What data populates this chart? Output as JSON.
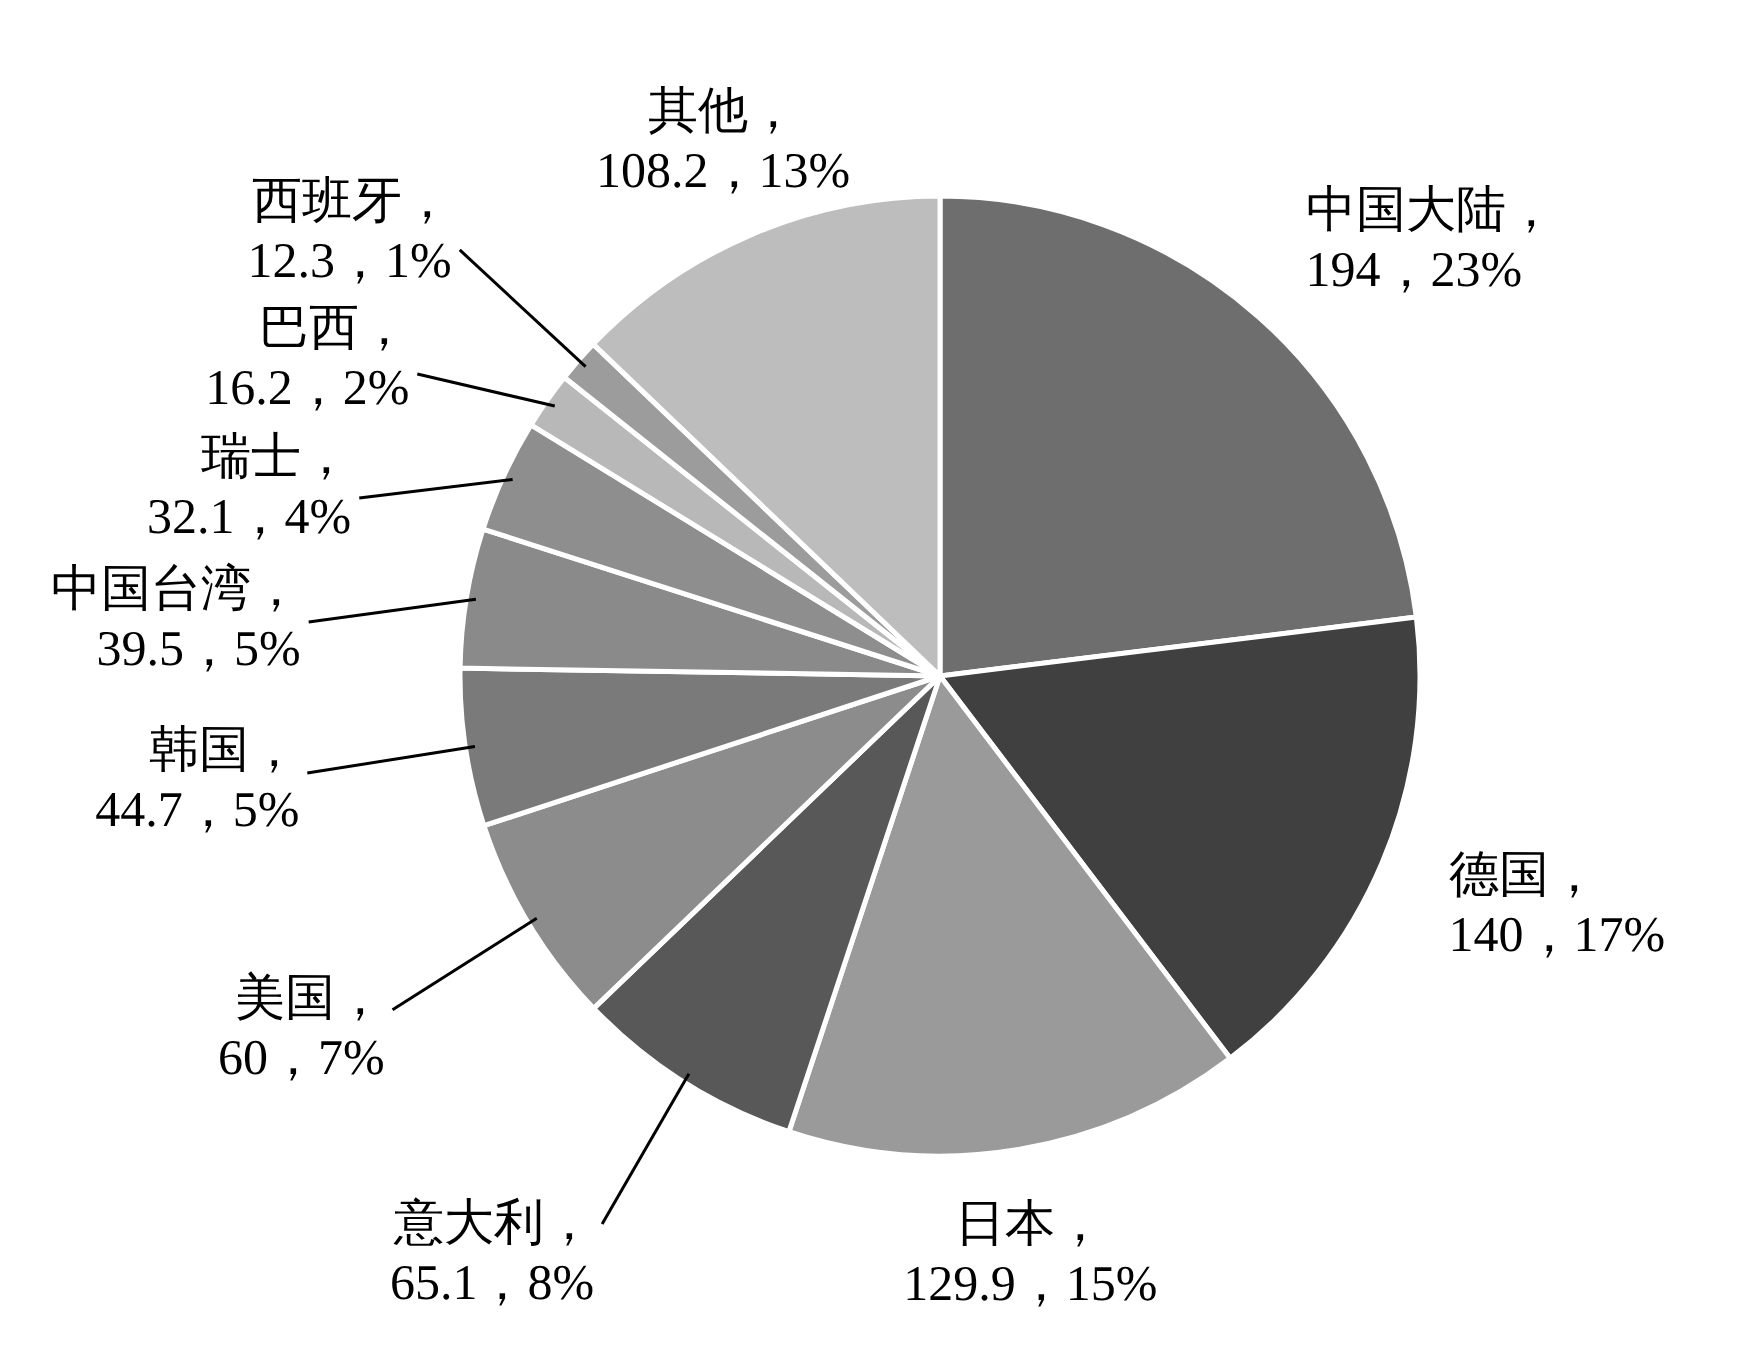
{
  "chart_data": {
    "type": "pie",
    "categories": [
      "中国大陆",
      "德国",
      "日本",
      "意大利",
      "美国",
      "韩国",
      "中国台湾",
      "瑞士",
      "巴西",
      "西班牙",
      "其他"
    ],
    "values": [
      194,
      140,
      129.9,
      65.1,
      60,
      44.7,
      39.5,
      32.1,
      16.2,
      12.3,
      108.2
    ],
    "value_labels": [
      "，194，23%",
      "，140，17%",
      "，129.9，15%",
      "，65.1，8%",
      "，60，7%",
      "，44.7，5%",
      "，39.5，5%",
      "，32.1，4%",
      "，16.2，2%",
      "，12.3，1%",
      "，108.2，13%"
    ],
    "colors": [
      "#6e6e6e",
      "#404040",
      "#9a9a9a",
      "#585858",
      "#8c8c8c",
      "#7a7a7a",
      "#8a8a8a",
      "#8e8e8e",
      "#b8b8b8",
      "#9c9c9c",
      "#bdbdbd"
    ]
  }
}
